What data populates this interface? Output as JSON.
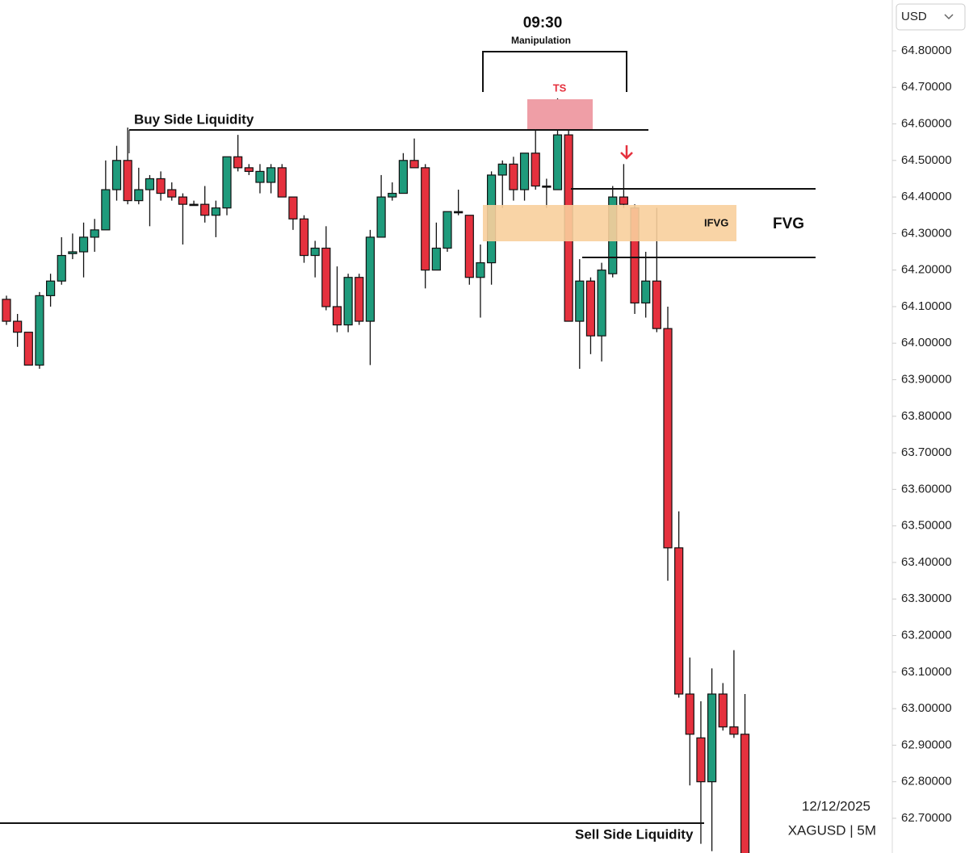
{
  "chart_data": {
    "type": "candlestick",
    "currency": "USD",
    "title": "09:30",
    "subtitle": "Manipulation",
    "annotations": {
      "ts": "TS",
      "buy_side": "Buy Side Liquidity",
      "ifvg": "IFVG",
      "fvg": "FVG",
      "sell_side": "Sell Side Liquidity",
      "date": "12/12/2025",
      "symbol": "XAGUSD | 5M"
    },
    "up_color": "#1f9b7c",
    "down_color": "#e5313e",
    "ylim": [
      62.605,
      64.939
    ],
    "yticks": [
      {
        "value": 64.8,
        "label": "64.80000"
      },
      {
        "value": 64.7,
        "label": "64.70000"
      },
      {
        "value": 64.6,
        "label": "64.60000"
      },
      {
        "value": 64.5,
        "label": "64.50000"
      },
      {
        "value": 64.4,
        "label": "64.40000"
      },
      {
        "value": 64.3,
        "label": "64.30000"
      },
      {
        "value": 64.2,
        "label": "64.20000"
      },
      {
        "value": 64.1,
        "label": "64.10000"
      },
      {
        "value": 64.0,
        "label": "64.00000"
      },
      {
        "value": 63.9,
        "label": "63.90000"
      },
      {
        "value": 63.8,
        "label": "63.80000"
      },
      {
        "value": 63.7,
        "label": "63.70000"
      },
      {
        "value": 63.6,
        "label": "63.60000"
      },
      {
        "value": 63.5,
        "label": "63.50000"
      },
      {
        "value": 63.4,
        "label": "63.40000"
      },
      {
        "value": 63.3,
        "label": "63.30000"
      },
      {
        "value": 63.2,
        "label": "63.20000"
      },
      {
        "value": 63.1,
        "label": "63.10000"
      },
      {
        "value": 63.0,
        "label": "63.00000"
      },
      {
        "value": 62.9,
        "label": "62.90000"
      },
      {
        "value": 62.8,
        "label": "62.80000"
      },
      {
        "value": 62.7,
        "label": "62.70000"
      }
    ],
    "open": [
      64.12,
      64.06,
      64.03,
      63.94,
      64.13,
      64.17,
      64.245,
      64.25,
      64.29,
      64.31,
      64.42,
      64.5,
      64.39,
      64.42,
      64.45,
      64.42,
      64.4,
      64.38,
      64.38,
      64.35,
      64.37,
      64.51,
      64.48,
      64.44,
      64.44,
      64.48,
      64.4,
      64.34,
      64.24,
      64.26,
      64.1,
      64.05,
      64.18,
      64.06,
      64.29,
      64.4,
      64.41,
      64.5,
      64.48,
      64.2,
      64.26,
      64.36,
      64.35,
      64.18,
      64.22,
      64.46,
      64.49,
      64.42,
      64.52,
      64.43,
      64.42,
      64.57,
      64.06,
      64.17,
      64.02,
      64.19,
      64.4,
      64.37,
      64.11,
      64.17,
      64.04,
      63.44,
      63.04,
      62.92,
      62.8,
      63.04,
      62.95,
      62.93
    ],
    "high": [
      64.13,
      64.08,
      64.03,
      64.14,
      64.19,
      64.29,
      64.3,
      64.33,
      64.34,
      64.5,
      64.54,
      64.59,
      64.48,
      64.46,
      64.47,
      64.44,
      64.41,
      64.39,
      64.43,
      64.39,
      64.51,
      64.57,
      64.49,
      64.49,
      64.49,
      64.49,
      64.4,
      64.35,
      64.28,
      64.32,
      64.21,
      64.19,
      64.19,
      64.31,
      64.46,
      64.44,
      64.52,
      64.56,
      64.49,
      64.33,
      64.36,
      64.42,
      64.35,
      64.27,
      64.47,
      64.5,
      64.51,
      64.52,
      64.59,
      64.45,
      64.67,
      64.59,
      64.23,
      64.18,
      64.22,
      64.43,
      64.49,
      64.38,
      64.25,
      64.37,
      64.1,
      63.54,
      63.14,
      63.02,
      63.11,
      63.07,
      63.16,
      63.04
    ],
    "low": [
      64.05,
      63.99,
      63.94,
      63.93,
      64.1,
      64.16,
      64.23,
      64.18,
      64.25,
      64.31,
      64.39,
      64.38,
      64.38,
      64.32,
      64.39,
      64.39,
      64.27,
      64.38,
      64.33,
      64.29,
      64.35,
      64.47,
      64.46,
      64.41,
      64.41,
      64.4,
      64.31,
      64.22,
      64.18,
      64.09,
      64.03,
      64.03,
      64.05,
      63.94,
      64.29,
      64.39,
      64.41,
      64.48,
      64.15,
      64.2,
      64.25,
      64.35,
      64.16,
      64.07,
      64.16,
      64.37,
      64.39,
      64.39,
      64.42,
      64.37,
      64.42,
      64.06,
      63.93,
      63.97,
      63.95,
      64.18,
      64.37,
      64.08,
      64.07,
      64.03,
      63.35,
      63.03,
      62.79,
      62.63,
      62.61,
      62.94,
      62.92,
      62.58
    ],
    "close": [
      64.06,
      64.03,
      63.94,
      64.13,
      64.17,
      64.24,
      64.25,
      64.29,
      64.31,
      64.42,
      64.5,
      64.39,
      64.42,
      64.45,
      64.41,
      64.4,
      64.38,
      64.38,
      64.35,
      64.37,
      64.51,
      64.48,
      64.47,
      64.47,
      64.48,
      64.4,
      64.34,
      64.24,
      64.26,
      64.1,
      64.05,
      64.18,
      64.06,
      64.29,
      64.4,
      64.41,
      64.5,
      64.48,
      64.2,
      64.26,
      64.36,
      64.36,
      64.18,
      64.22,
      64.46,
      64.49,
      64.42,
      64.52,
      64.43,
      64.43,
      64.57,
      64.06,
      64.17,
      64.02,
      64.2,
      64.4,
      64.38,
      64.11,
      64.17,
      64.04,
      63.44,
      63.04,
      62.93,
      62.8,
      63.04,
      62.95,
      62.93,
      62.6
    ]
  }
}
